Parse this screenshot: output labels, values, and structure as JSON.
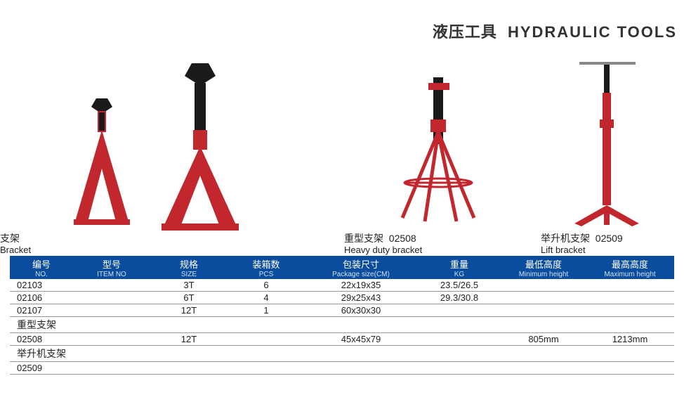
{
  "title": {
    "cn": "液压工具",
    "en": "HYDRAULIC TOOLS"
  },
  "colors": {
    "header_bg": "#0a4d9e",
    "header_fg": "#ffffff",
    "row_border": "#999999",
    "jack_red": "#c1272d",
    "jack_black": "#1a1a1a"
  },
  "products": [
    {
      "id": "p1",
      "label_cn": "支架",
      "label_en": "Bracket",
      "code": ""
    },
    {
      "id": "p2",
      "label_cn": "重型支架",
      "label_en": "Heavy duty bracket",
      "code": "02508"
    },
    {
      "id": "p3",
      "label_cn": "举升机支架",
      "label_en": "Lift bracket",
      "code": "02509"
    }
  ],
  "table": {
    "columns": [
      {
        "cn": "编号",
        "en": "NO."
      },
      {
        "cn": "型号",
        "en": "ITEM NO"
      },
      {
        "cn": "规格",
        "en": "SIZE"
      },
      {
        "cn": "装箱数",
        "en": "PCS"
      },
      {
        "cn": "包装尺寸",
        "en": "Package size(CM)"
      },
      {
        "cn": "重量",
        "en": "KG"
      },
      {
        "cn": "最低高度",
        "en": "Minimum height"
      },
      {
        "cn": "最高高度",
        "en": "Maximum height"
      }
    ],
    "rows": [
      {
        "type": "data",
        "cells": [
          "02103",
          "",
          "3T",
          "6",
          "22x19x35",
          "23.5/26.5",
          "",
          ""
        ]
      },
      {
        "type": "data",
        "cells": [
          "02106",
          "",
          "6T",
          "4",
          "29x25x43",
          "29.3/30.8",
          "",
          ""
        ]
      },
      {
        "type": "data",
        "cells": [
          "02107",
          "",
          "12T",
          "1",
          "60x30x30",
          "",
          "",
          ""
        ]
      },
      {
        "type": "section",
        "label": "重型支架"
      },
      {
        "type": "data",
        "cells": [
          "02508",
          "",
          "12T",
          "",
          "45x45x79",
          "",
          "805mm",
          "1213mm"
        ]
      },
      {
        "type": "section",
        "label": "举升机支架"
      },
      {
        "type": "data",
        "cells": [
          "02509",
          "",
          "",
          "",
          "",
          "",
          "",
          ""
        ]
      }
    ]
  }
}
